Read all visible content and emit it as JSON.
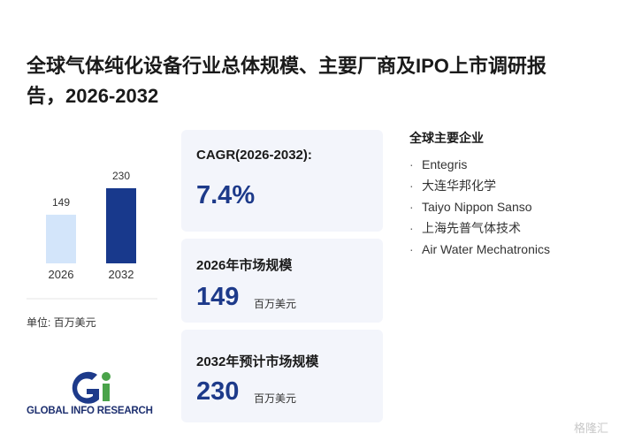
{
  "title": "全球气体纯化设备行业总体规模、主要厂商及IPO上市调研报告，2026-2032",
  "chart_data": {
    "type": "bar",
    "categories": [
      "2026",
      "2032"
    ],
    "values": [
      149,
      230
    ],
    "colors": [
      "#d3e5fa",
      "#18398c"
    ]
  },
  "unit_note": "单位: 百万美元",
  "cards": [
    {
      "label": "CAGR(2026-2032):",
      "value": "7.4%"
    },
    {
      "label": "2026年市场规模",
      "value": "149",
      "unit": "百万美元"
    },
    {
      "label": "2032年预计市场规模",
      "value": "230",
      "unit": "百万美元"
    }
  ],
  "companies": {
    "heading": "全球主要企业",
    "items": [
      "Entegris",
      "大连华邦化学",
      "Taiyo Nippon Sanso",
      "上海先普气体技术",
      "Air Water Mechatronics"
    ]
  },
  "logo_text": "GLOBAL INFO RESEARCH",
  "source_mark": "格隆汇"
}
